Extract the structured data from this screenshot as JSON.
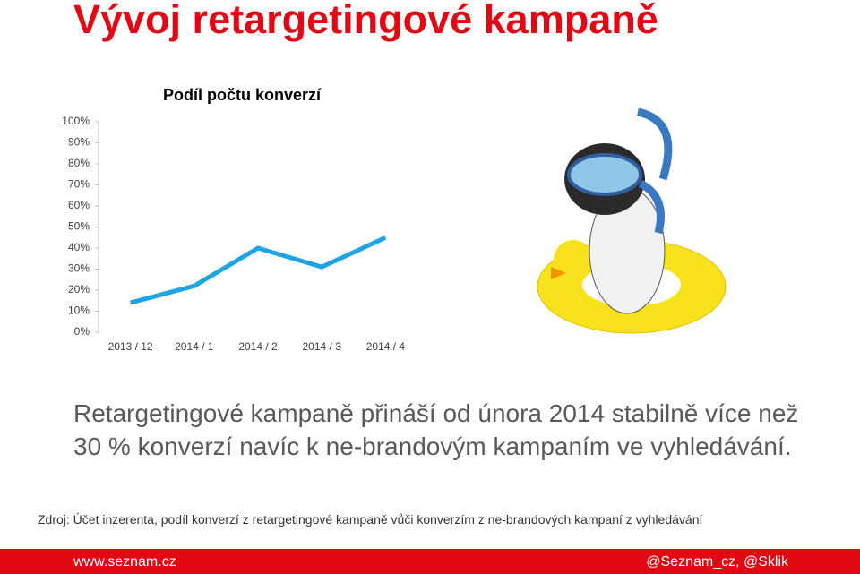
{
  "slide_title": "Vývoj retargetingové kampaně",
  "body_text": "Retargetingové kampaně přináší od února 2014 stabilně více než 30 % konverzí navíc k ne-brandovým kampaním ve vyhledávání.",
  "source": "Zdroj: Účet inzerenta, podíl konverzí z retargetingové kampaně vůči konverzím z ne-brandových kampaní z vyhledávání",
  "footer": {
    "left": "www.seznam.cz",
    "right": "@Seznam_cz, @Sklik"
  },
  "chart_data": {
    "type": "line",
    "title": "Podíl počtu konverzí",
    "categories": [
      "2013 / 12",
      "2014 / 1",
      "2014 / 2",
      "2014 / 3",
      "2014 / 4"
    ],
    "values": [
      14,
      22,
      40,
      31,
      45
    ],
    "color": "#1ea4e0",
    "ylim": [
      0,
      100
    ],
    "yticks": [
      {
        "value": 0,
        "label": "0%"
      },
      {
        "value": 10,
        "label": "10%"
      },
      {
        "value": 20,
        "label": "20%"
      },
      {
        "value": 30,
        "label": "30%"
      },
      {
        "value": 40,
        "label": "40%"
      },
      {
        "value": 50,
        "label": "50%"
      },
      {
        "value": 60,
        "label": "60%"
      },
      {
        "value": 70,
        "label": "70%"
      },
      {
        "value": 80,
        "label": "80%"
      },
      {
        "value": 90,
        "label": "90%"
      },
      {
        "value": 100,
        "label": "100%"
      }
    ],
    "grid": false
  }
}
